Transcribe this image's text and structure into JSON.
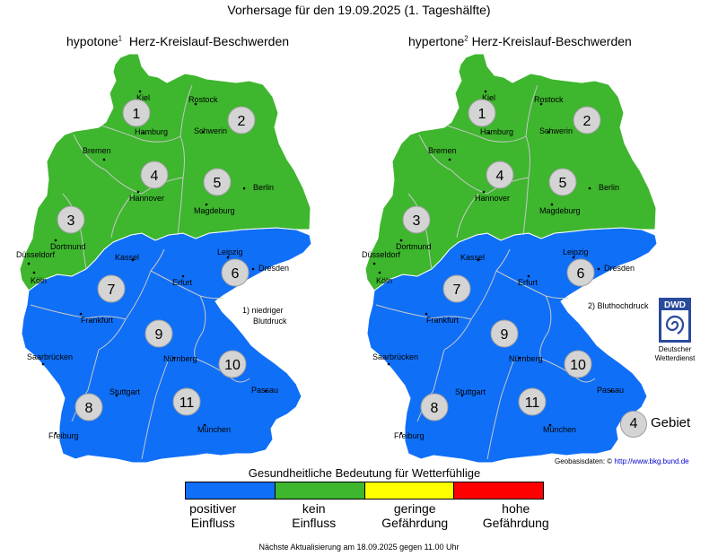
{
  "title": "Vorhersage für den 19.09.2025 (1. Tageshälfte)",
  "maps": [
    {
      "title_prefix": "hypotone",
      "title_footnote": "1",
      "title_suffix": "Herz-Kreislauf-Beschwerden",
      "regions": [
        {
          "number": "1",
          "category": "kein Einfluss"
        },
        {
          "number": "2",
          "category": "kein Einfluss"
        },
        {
          "number": "3",
          "category": "kein Einfluss"
        },
        {
          "number": "4",
          "category": "kein Einfluss"
        },
        {
          "number": "5",
          "category": "kein Einfluss"
        },
        {
          "number": "6",
          "category": "positiver Einfluss"
        },
        {
          "number": "7",
          "category": "positiver Einfluss"
        },
        {
          "number": "8",
          "category": "positiver Einfluss"
        },
        {
          "number": "9",
          "category": "positiver Einfluss"
        },
        {
          "number": "10",
          "category": "positiver Einfluss"
        },
        {
          "number": "11",
          "category": "positiver Einfluss"
        }
      ],
      "note": [
        "1) niedriger",
        "Blutdruck"
      ]
    },
    {
      "title_prefix": "hypertone",
      "title_footnote": "2",
      "title_suffix": "Herz-Kreislauf-Beschwerden",
      "regions": [
        {
          "number": "1",
          "category": "kein Einfluss"
        },
        {
          "number": "2",
          "category": "kein Einfluss"
        },
        {
          "number": "3",
          "category": "kein Einfluss"
        },
        {
          "number": "4",
          "category": "kein Einfluss"
        },
        {
          "number": "5",
          "category": "kein Einfluss"
        },
        {
          "number": "6",
          "category": "positiver Einfluss"
        },
        {
          "number": "7",
          "category": "positiver Einfluss"
        },
        {
          "number": "8",
          "category": "positiver Einfluss"
        },
        {
          "number": "9",
          "category": "positiver Einfluss"
        },
        {
          "number": "10",
          "category": "positiver Einfluss"
        },
        {
          "number": "11",
          "category": "positiver Einfluss"
        }
      ],
      "note": [
        "2) Bluthochdruck"
      ]
    }
  ],
  "cities": [
    "Kiel",
    "Rostock",
    "Hamburg",
    "Schwerin",
    "Bremen",
    "Hannover",
    "Berlin",
    "Magdeburg",
    "Dortmund",
    "Düsseldorf",
    "Köln",
    "Kassel",
    "Leipzig",
    "Dresden",
    "Erfurt",
    "Frankfurt",
    "Saarbrücken",
    "Nürnberg",
    "Passau",
    "Stuttgart",
    "Freiburg",
    "München"
  ],
  "legend": {
    "title": "Gesundheitliche Bedeutung für Wetterfühlige",
    "items": [
      {
        "line1": "positiver",
        "line2": "Einfluss",
        "color": "#0f6ff7"
      },
      {
        "line1": "kein",
        "line2": "Einfluss",
        "color": "#3eb62e"
      },
      {
        "line1": "geringe",
        "line2": "Gefährdung",
        "color": "#ffff00"
      },
      {
        "line1": "hohe",
        "line2": "Gefährdung",
        "color": "#ff0000"
      }
    ]
  },
  "gebiet": {
    "number": "4",
    "label": "Gebiet"
  },
  "dwd": {
    "logo_text": "DWD",
    "name_line1": "Deutscher",
    "name_line2": "Wetterdienst"
  },
  "geobasis": {
    "label": "Geobasisdaten:",
    "symbol": "©",
    "link": "http://www.bkg.bund.de"
  },
  "footer": "Nächste Aktualisierung am 18.09.2025 gegen 11.00 Uhr"
}
